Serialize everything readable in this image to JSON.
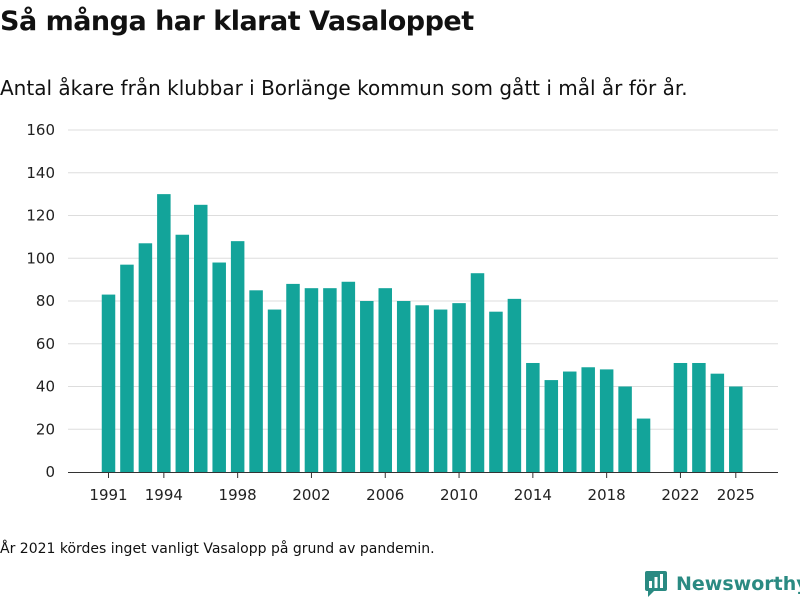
{
  "title": "Så många har klarat Vasaloppet",
  "subtitle": "Antal åkare från klubbar i Borlänge kommun som gått i mål år för år.",
  "footnote": "År 2021 kördes inget vanligt Vasalopp på grund av pandemin.",
  "brand": {
    "name": "Newsworthy",
    "color": "#2a8a82",
    "icon": "newsworthy-logo-icon"
  },
  "colors": {
    "bar": "#13a49a",
    "grid": "#dddddd",
    "axis": "#333333"
  },
  "chart_data": {
    "type": "bar",
    "title": "",
    "xlabel": "",
    "ylabel": "",
    "ylim": [
      0,
      160
    ],
    "yticks": [
      0,
      20,
      40,
      60,
      80,
      100,
      120,
      140,
      160
    ],
    "xticks": [
      1991,
      1994,
      1998,
      2002,
      2006,
      2010,
      2014,
      2018,
      2022,
      2025
    ],
    "grid": true,
    "x": [
      1991,
      1992,
      1993,
      1994,
      1995,
      1996,
      1997,
      1998,
      1999,
      2000,
      2001,
      2002,
      2003,
      2004,
      2005,
      2006,
      2007,
      2008,
      2009,
      2010,
      2011,
      2012,
      2013,
      2014,
      2015,
      2016,
      2017,
      2018,
      2019,
      2020,
      2021,
      2022,
      2023,
      2024,
      2025
    ],
    "values": [
      83,
      97,
      107,
      130,
      111,
      125,
      98,
      108,
      85,
      76,
      88,
      86,
      86,
      89,
      80,
      86,
      80,
      78,
      76,
      79,
      93,
      75,
      81,
      51,
      43,
      47,
      49,
      48,
      40,
      25,
      null,
      51,
      51,
      46,
      40
    ]
  }
}
